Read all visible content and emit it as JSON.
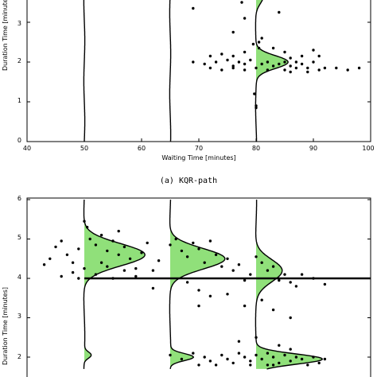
{
  "chart_data": [
    {
      "type": "scatter",
      "title": "",
      "xlabel": "Waiting Time [minutes]",
      "ylabel": "Duration Time [minutes]",
      "xlim": [
        40,
        100
      ],
      "ylim": [
        0,
        4
      ],
      "xticks": [
        40,
        50,
        60,
        70,
        80,
        90,
        100
      ],
      "yticks": [
        0,
        1,
        2,
        3
      ],
      "caption": "(a)  KQR-path",
      "fill_color": "#90e07a",
      "curves": [
        {
          "x": 50,
          "peaks": []
        },
        {
          "x": 65,
          "peaks": []
        },
        {
          "x": 80,
          "peaks": [
            {
              "y": 2.0,
              "h": 5.5,
              "w": 0.16
            },
            {
              "y": 3.65,
              "h": 1.2,
              "w": 0.18
            }
          ]
        }
      ],
      "points": [
        [
          69,
          3.35
        ],
        [
          75,
          3.65
        ],
        [
          77.5,
          3.5
        ],
        [
          78,
          3.1
        ],
        [
          83,
          3.55
        ],
        [
          84,
          3.25
        ],
        [
          72,
          2.15
        ],
        [
          74,
          2.2
        ],
        [
          76,
          2.15
        ],
        [
          78,
          2.25
        ],
        [
          80.5,
          2.35
        ],
        [
          83,
          2.35
        ],
        [
          85,
          2.25
        ],
        [
          86,
          2.1
        ],
        [
          88,
          2.15
        ],
        [
          90,
          2.3
        ],
        [
          91,
          2.15
        ],
        [
          69,
          2.0
        ],
        [
          71,
          1.95
        ],
        [
          73,
          2.0
        ],
        [
          75,
          2.05
        ],
        [
          76,
          1.9
        ],
        [
          77,
          2.0
        ],
        [
          78,
          1.95
        ],
        [
          79,
          2.05
        ],
        [
          81,
          1.95
        ],
        [
          82,
          2.0
        ],
        [
          83,
          1.9
        ],
        [
          84,
          1.95
        ],
        [
          85,
          2.0
        ],
        [
          86,
          1.9
        ],
        [
          87,
          2.0
        ],
        [
          88,
          1.95
        ],
        [
          89,
          1.85
        ],
        [
          90,
          2.0
        ],
        [
          72,
          1.85
        ],
        [
          74,
          1.8
        ],
        [
          76,
          1.85
        ],
        [
          78,
          1.8
        ],
        [
          80,
          1.85
        ],
        [
          82,
          1.8
        ],
        [
          85,
          1.8
        ],
        [
          86,
          1.75
        ],
        [
          87,
          1.85
        ],
        [
          89,
          1.75
        ],
        [
          91,
          1.8
        ],
        [
          92,
          1.85
        ],
        [
          94,
          1.85
        ],
        [
          96,
          1.8
        ],
        [
          98,
          1.85
        ],
        [
          79.5,
          2.45
        ],
        [
          80.5,
          2.5
        ],
        [
          81,
          2.6
        ],
        [
          76,
          2.75
        ],
        [
          79.7,
          1.2
        ],
        [
          80,
          0.9
        ],
        [
          80,
          0.85
        ]
      ]
    },
    {
      "type": "scatter",
      "title": "",
      "xlabel": "",
      "ylabel": "Duration Time [minutes]",
      "xlim": [
        40,
        100
      ],
      "ylim": [
        1.7,
        6
      ],
      "yticks": [
        2,
        3,
        4,
        5,
        6
      ],
      "fill_color": "#90e07a",
      "hline_y": 4.0,
      "curves": [
        {
          "x": 50,
          "peaks": [
            {
              "y": 4.6,
              "h": 10.5,
              "w": 0.28
            },
            {
              "y": 2.05,
              "h": 1.2,
              "w": 0.08
            }
          ]
        },
        {
          "x": 65,
          "peaks": [
            {
              "y": 4.5,
              "h": 9.5,
              "w": 0.26
            },
            {
              "y": 2.0,
              "h": 4.0,
              "w": 0.09
            }
          ]
        },
        {
          "x": 80,
          "peaks": [
            {
              "y": 4.2,
              "h": 4.5,
              "w": 0.28
            },
            {
              "y": 1.95,
              "h": 11.5,
              "w": 0.13
            }
          ]
        }
      ],
      "points": [
        [
          43,
          4.35
        ],
        [
          44,
          4.5
        ],
        [
          45,
          4.8
        ],
        [
          46,
          4.95
        ],
        [
          47,
          4.6
        ],
        [
          48,
          4.4
        ],
        [
          49,
          4.75
        ],
        [
          50,
          5.45
        ],
        [
          50.5,
          5.3
        ],
        [
          51,
          5.0
        ],
        [
          52,
          4.85
        ],
        [
          53,
          5.1
        ],
        [
          54,
          4.7
        ],
        [
          55,
          4.95
        ],
        [
          56,
          4.6
        ],
        [
          57,
          4.8
        ],
        [
          58,
          4.5
        ],
        [
          59,
          4.25
        ],
        [
          60,
          4.65
        ],
        [
          61,
          4.9
        ],
        [
          62,
          4.2
        ],
        [
          63,
          4.45
        ],
        [
          46,
          4.05
        ],
        [
          48,
          4.15
        ],
        [
          50,
          4.25
        ],
        [
          52,
          4.1
        ],
        [
          54,
          4.3
        ],
        [
          55,
          4.0
        ],
        [
          57,
          4.2
        ],
        [
          59,
          4.05
        ],
        [
          62,
          3.75
        ],
        [
          49,
          4.0
        ],
        [
          53,
          4.4
        ],
        [
          56,
          5.2
        ],
        [
          65,
          4.85
        ],
        [
          66,
          5.0
        ],
        [
          67,
          4.7
        ],
        [
          68,
          4.55
        ],
        [
          69,
          4.9
        ],
        [
          70,
          4.75
        ],
        [
          71,
          4.4
        ],
        [
          72,
          4.95
        ],
        [
          73,
          4.6
        ],
        [
          74,
          4.3
        ],
        [
          75,
          4.5
        ],
        [
          76,
          4.2
        ],
        [
          77,
          4.35
        ],
        [
          78,
          3.95
        ],
        [
          79,
          4.1
        ],
        [
          80,
          4.55
        ],
        [
          81,
          4.4
        ],
        [
          82,
          4.2
        ],
        [
          83,
          4.3
        ],
        [
          84,
          3.95
        ],
        [
          85,
          4.1
        ],
        [
          86,
          3.9
        ],
        [
          87,
          3.8
        ],
        [
          88,
          4.1
        ],
        [
          90,
          4.0
        ],
        [
          92,
          3.85
        ],
        [
          68,
          3.9
        ],
        [
          70,
          3.7
        ],
        [
          72,
          3.55
        ],
        [
          75,
          3.6
        ],
        [
          78,
          3.3
        ],
        [
          81,
          3.45
        ],
        [
          83,
          3.2
        ],
        [
          86,
          3.0
        ],
        [
          70,
          3.3
        ],
        [
          65,
          2.05
        ],
        [
          67,
          1.95
        ],
        [
          69,
          2.1
        ],
        [
          71,
          2.0
        ],
        [
          72,
          1.9
        ],
        [
          74,
          2.05
        ],
        [
          75,
          1.95
        ],
        [
          77,
          2.1
        ],
        [
          78,
          2.0
        ],
        [
          79,
          1.9
        ],
        [
          80,
          2.05
        ],
        [
          81,
          1.95
        ],
        [
          82,
          2.1
        ],
        [
          83,
          2.0
        ],
        [
          84,
          1.85
        ],
        [
          85,
          2.05
        ],
        [
          86,
          1.9
        ],
        [
          87,
          2.0
        ],
        [
          88,
          1.95
        ],
        [
          89,
          1.8
        ],
        [
          90,
          2.0
        ],
        [
          91,
          1.85
        ],
        [
          92,
          1.95
        ],
        [
          70,
          1.8
        ],
        [
          73,
          1.8
        ],
        [
          76,
          1.85
        ],
        [
          79,
          1.8
        ],
        [
          82,
          1.8
        ],
        [
          84,
          2.3
        ],
        [
          86,
          2.2
        ],
        [
          80,
          2.5
        ],
        [
          77,
          2.4
        ],
        [
          83,
          1.8
        ]
      ]
    }
  ]
}
